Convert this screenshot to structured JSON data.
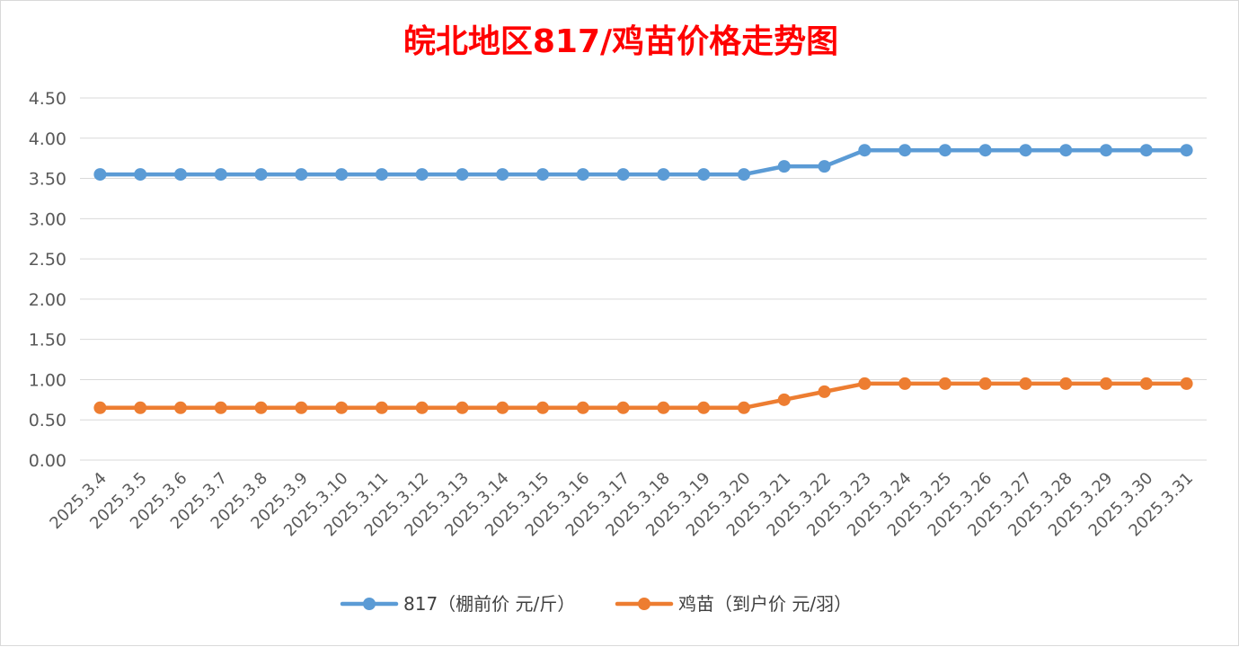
{
  "chart_data": {
    "type": "line",
    "title": "皖北地区817/鸡苗价格走势图",
    "categories": [
      "2025.3.4",
      "2025.3.5",
      "2025.3.6",
      "2025.3.7",
      "2025.3.8",
      "2025.3.9",
      "2025.3.10",
      "2025.3.11",
      "2025.3.12",
      "2025.3.13",
      "2025.3.14",
      "2025.3.15",
      "2025.3.16",
      "2025.3.17",
      "2025.3.18",
      "2025.3.19",
      "2025.3.20",
      "2025.3.21",
      "2025.3.22",
      "2025.3.23",
      "2025.3.24",
      "2025.3.25",
      "2025.3.26",
      "2025.3.27",
      "2025.3.28",
      "2025.3.29",
      "2025.3.30",
      "2025.3.31"
    ],
    "series": [
      {
        "name": "817（棚前价 元/斤）",
        "color": "#5b9bd5",
        "values": [
          3.55,
          3.55,
          3.55,
          3.55,
          3.55,
          3.55,
          3.55,
          3.55,
          3.55,
          3.55,
          3.55,
          3.55,
          3.55,
          3.55,
          3.55,
          3.55,
          3.55,
          3.65,
          3.65,
          3.85,
          3.85,
          3.85,
          3.85,
          3.85,
          3.85,
          3.85,
          3.85,
          3.85
        ]
      },
      {
        "name": "鸡苗（到户价 元/羽）",
        "color": "#ed7d31",
        "values": [
          0.65,
          0.65,
          0.65,
          0.65,
          0.65,
          0.65,
          0.65,
          0.65,
          0.65,
          0.65,
          0.65,
          0.65,
          0.65,
          0.65,
          0.65,
          0.65,
          0.65,
          0.75,
          0.85,
          0.95,
          0.95,
          0.95,
          0.95,
          0.95,
          0.95,
          0.95,
          0.95,
          0.95
        ]
      }
    ],
    "ylim": [
      0,
      4.5
    ],
    "yticks": [
      "0.00",
      "0.50",
      "1.00",
      "1.50",
      "2.00",
      "2.50",
      "3.00",
      "3.50",
      "4.00",
      "4.50"
    ],
    "grid": true,
    "legend_position": "bottom",
    "title_color": "#ff0000"
  }
}
